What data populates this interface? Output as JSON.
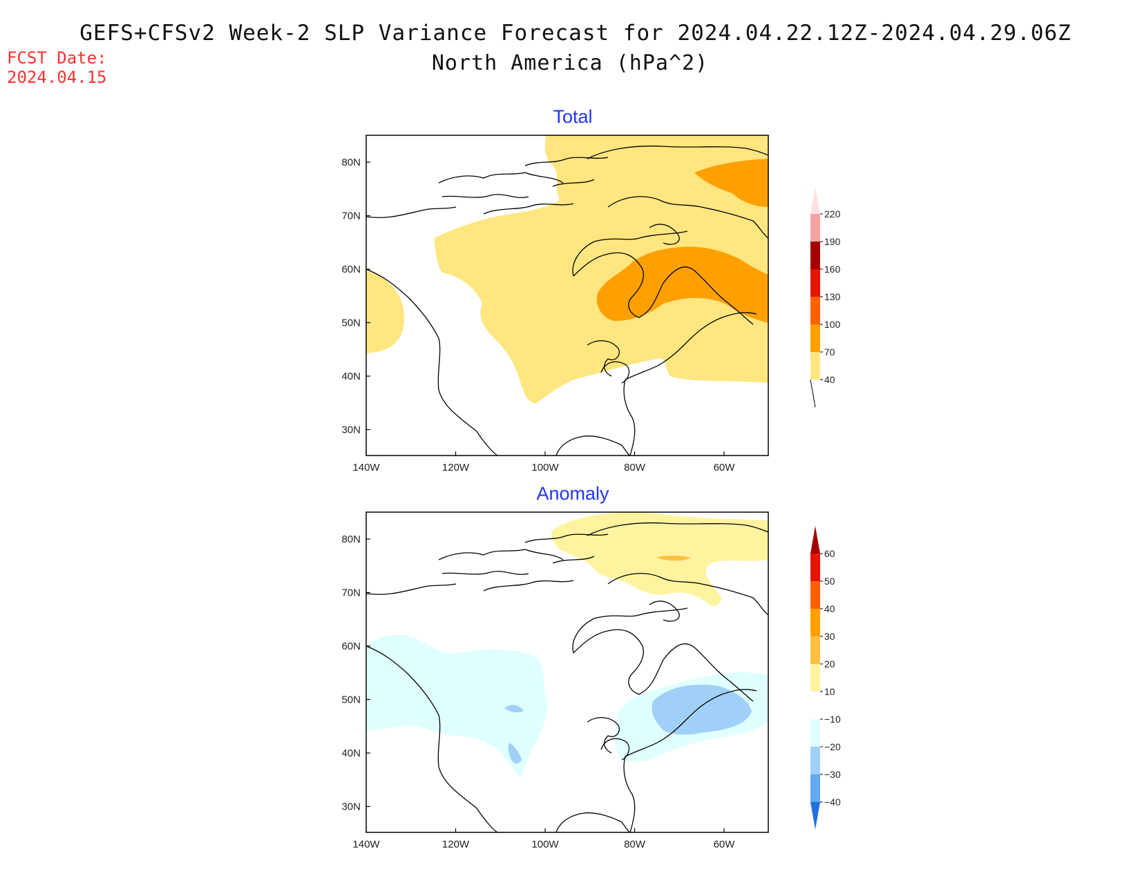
{
  "header": {
    "title_line1": "GEFS+CFSv2 Week-2 SLP Variance Forecast for 2024.04.22.12Z-2024.04.29.06Z",
    "title_line2": "North America (hPa^2)",
    "fcst_label": "FCST Date:",
    "fcst_date": "2024.04.15"
  },
  "colors": {
    "title_accent": "#2035ff",
    "fcst": "#ff3030"
  },
  "panels": [
    {
      "title": "Total",
      "lat_ticks": [
        "80N",
        "70N",
        "60N",
        "50N",
        "40N",
        "30N"
      ],
      "lon_ticks": [
        "140W",
        "120W",
        "100W",
        "80W",
        "60W"
      ],
      "colorbar": {
        "levels": [
          "40",
          "70",
          "100",
          "130",
          "160",
          "190",
          "220"
        ],
        "colors": [
          "#ffe680",
          "#ffa000",
          "#ff6000",
          "#e51400",
          "#a50000",
          "#f4a3a3",
          "#ffe0e0"
        ]
      }
    },
    {
      "title": "Anomaly",
      "lat_ticks": [
        "80N",
        "70N",
        "60N",
        "50N",
        "40N",
        "30N"
      ],
      "lon_ticks": [
        "140W",
        "120W",
        "100W",
        "80W",
        "60W"
      ],
      "colorbar": {
        "levels": [
          "60",
          "50",
          "40",
          "30",
          "20",
          "10",
          "−10",
          "−20",
          "−30",
          "−40"
        ],
        "colors": [
          "#a50000",
          "#e51400",
          "#ff6000",
          "#ffa000",
          "#ffc040",
          "#fff3a0",
          "#ffffff",
          "#e0ffff",
          "#a0d0f8",
          "#60a8f0",
          "#2070e0"
        ]
      }
    }
  ]
}
